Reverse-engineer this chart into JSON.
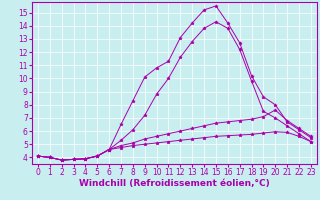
{
  "xlabel": "Windchill (Refroidissement éolien,°C)",
  "background_color": "#c8eef0",
  "grid_color": "#ffffff",
  "line_color": "#aa00aa",
  "xlim": [
    -0.5,
    23.5
  ],
  "ylim": [
    3.5,
    15.8
  ],
  "xticks": [
    0,
    1,
    2,
    3,
    4,
    5,
    6,
    7,
    8,
    9,
    10,
    11,
    12,
    13,
    14,
    15,
    16,
    17,
    18,
    19,
    20,
    21,
    22,
    23
  ],
  "yticks": [
    4,
    5,
    6,
    7,
    8,
    9,
    10,
    11,
    12,
    13,
    14,
    15
  ],
  "line1_x": [
    0,
    1,
    2,
    3,
    4,
    5,
    6,
    7,
    8,
    9,
    10,
    11,
    12,
    13,
    14,
    15,
    16,
    17,
    18,
    19,
    20,
    21,
    22,
    23
  ],
  "line1_y": [
    4.1,
    4.0,
    3.8,
    3.85,
    3.9,
    4.1,
    4.6,
    6.5,
    8.3,
    10.1,
    10.8,
    11.3,
    13.1,
    14.2,
    15.2,
    15.5,
    14.2,
    12.7,
    10.2,
    8.6,
    8.0,
    6.7,
    6.1,
    5.5
  ],
  "line2_x": [
    0,
    1,
    2,
    3,
    4,
    5,
    6,
    7,
    8,
    9,
    10,
    11,
    12,
    13,
    14,
    15,
    16,
    17,
    18,
    19,
    20,
    21,
    22,
    23
  ],
  "line2_y": [
    4.1,
    4.0,
    3.8,
    3.85,
    3.9,
    4.1,
    4.6,
    5.3,
    6.1,
    7.2,
    8.8,
    10.0,
    11.6,
    12.8,
    13.8,
    14.3,
    13.8,
    12.2,
    9.8,
    7.5,
    7.0,
    6.4,
    5.8,
    5.2
  ],
  "line3_x": [
    0,
    1,
    2,
    3,
    4,
    5,
    6,
    7,
    8,
    9,
    10,
    11,
    12,
    13,
    14,
    15,
    16,
    17,
    18,
    19,
    20,
    21,
    22,
    23
  ],
  "line3_y": [
    4.1,
    4.0,
    3.8,
    3.85,
    3.9,
    4.1,
    4.6,
    4.9,
    5.1,
    5.4,
    5.6,
    5.8,
    6.0,
    6.2,
    6.4,
    6.6,
    6.7,
    6.8,
    6.9,
    7.1,
    7.6,
    6.8,
    6.2,
    5.6
  ],
  "line4_x": [
    0,
    1,
    2,
    3,
    4,
    5,
    6,
    7,
    8,
    9,
    10,
    11,
    12,
    13,
    14,
    15,
    16,
    17,
    18,
    19,
    20,
    21,
    22,
    23
  ],
  "line4_y": [
    4.1,
    4.0,
    3.8,
    3.85,
    3.9,
    4.1,
    4.6,
    4.75,
    4.9,
    5.0,
    5.1,
    5.2,
    5.3,
    5.4,
    5.5,
    5.6,
    5.65,
    5.7,
    5.75,
    5.85,
    5.95,
    5.9,
    5.6,
    5.2
  ],
  "xlabel_fontsize": 6.5,
  "tick_fontsize": 5.5
}
